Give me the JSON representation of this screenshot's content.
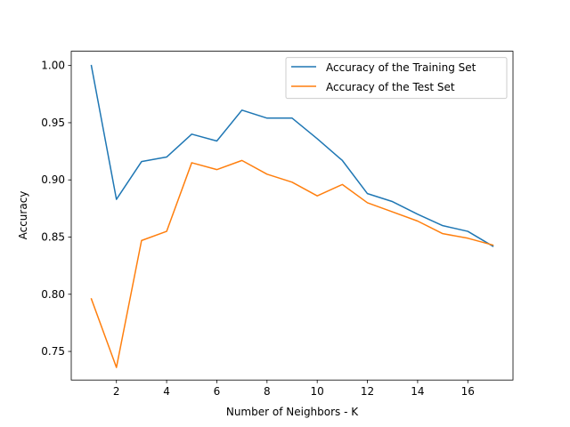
{
  "chart_data": {
    "type": "line",
    "title": "",
    "xlabel": "Number of Neighbors - K",
    "ylabel": "Accuracy",
    "xlim": [
      0.2,
      17.8
    ],
    "ylim": [
      0.725,
      1.0125
    ],
    "xticks": [
      2,
      4,
      6,
      8,
      10,
      12,
      14,
      16
    ],
    "yticks": [
      0.75,
      0.8,
      0.85,
      0.9,
      0.95,
      1.0
    ],
    "ytick_labels": [
      "0.75",
      "0.80",
      "0.85",
      "0.90",
      "0.95",
      "1.00"
    ],
    "grid": false,
    "legend_position": "top-right",
    "x": [
      1,
      2,
      3,
      4,
      5,
      6,
      7,
      8,
      9,
      10,
      11,
      12,
      13,
      14,
      15,
      16,
      17
    ],
    "series": [
      {
        "name": "Accuracy of the Training Set",
        "color": "#1f77b4",
        "values": [
          1.0,
          0.883,
          0.916,
          0.92,
          0.94,
          0.934,
          0.961,
          0.954,
          0.954,
          0.936,
          0.917,
          0.888,
          0.881,
          0.87,
          0.86,
          0.855,
          0.842
        ]
      },
      {
        "name": "Accuracy of the Test Set",
        "color": "#ff7f0e",
        "values": [
          0.796,
          0.736,
          0.847,
          0.855,
          0.915,
          0.909,
          0.917,
          0.905,
          0.898,
          0.886,
          0.896,
          0.88,
          0.872,
          0.864,
          0.853,
          0.849,
          0.843
        ]
      }
    ]
  }
}
